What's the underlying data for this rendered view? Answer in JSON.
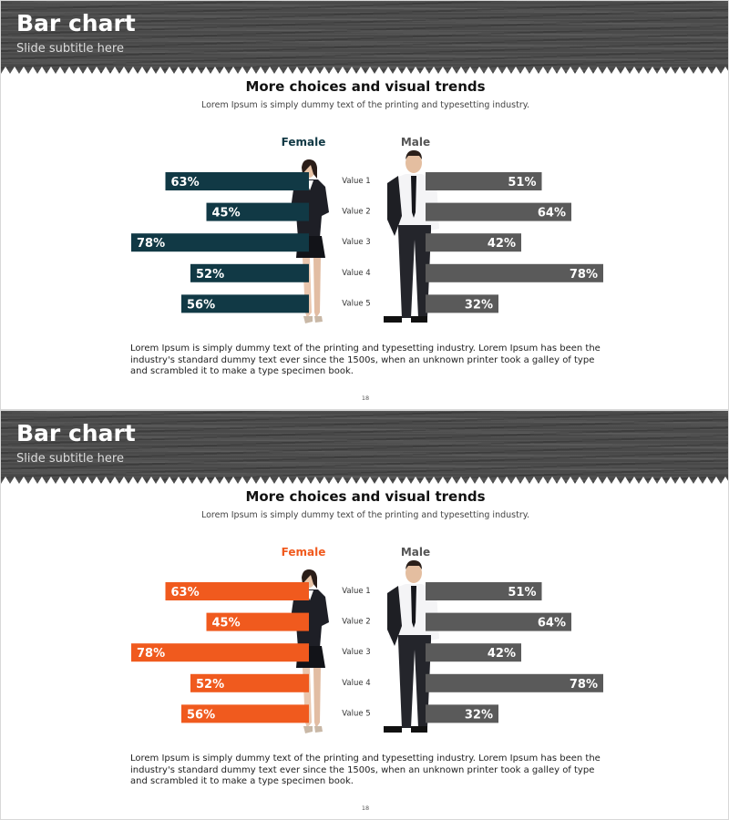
{
  "slides": [
    {
      "title": "Bar chart",
      "subtitle": "Slide subtitle here",
      "heading": "More choices and visual trends",
      "subheading": "Lorem Ipsum is simply dummy text of the printing and typesetting industry.",
      "body": "Lorem Ipsum is simply dummy text of the printing and typesetting industry. Lorem Ipsum has been the industry's standard dummy text ever since the 1500s, when an unknown printer took a galley of type and scrambled it to make a type specimen book.",
      "page_number": "18",
      "female_color": "#113945",
      "male_color": "#5a5a5a"
    },
    {
      "title": "Bar chart",
      "subtitle": "Slide subtitle here",
      "heading": "More choices and visual trends",
      "subheading": "Lorem Ipsum is simply dummy text of the printing and typesetting industry.",
      "body": "Lorem Ipsum is simply dummy text of the printing and typesetting industry. Lorem Ipsum has been the industry's standard dummy text ever since the 1500s, when an unknown printer took a galley of type and scrambled it to make a type specimen book.",
      "page_number": "18",
      "female_color": "#f05a1e",
      "male_color": "#5a5a5a"
    }
  ],
  "chart_data": [
    {
      "type": "bar",
      "orientation": "horizontal-diverging",
      "categories": [
        "Value 1",
        "Value 2",
        "Value 3",
        "Value 4",
        "Value 5"
      ],
      "series": [
        {
          "name": "Female",
          "values": [
            63,
            45,
            78,
            52,
            56
          ],
          "color": "#113945"
        },
        {
          "name": "Male",
          "values": [
            51,
            64,
            42,
            78,
            32
          ],
          "color": "#5a5a5a"
        }
      ],
      "value_format": "percent",
      "legend": "top",
      "grid": false
    },
    {
      "type": "bar",
      "orientation": "horizontal-diverging",
      "categories": [
        "Value 1",
        "Value 2",
        "Value 3",
        "Value 4",
        "Value 5"
      ],
      "series": [
        {
          "name": "Female",
          "values": [
            63,
            45,
            78,
            52,
            56
          ],
          "color": "#f05a1e"
        },
        {
          "name": "Male",
          "values": [
            51,
            64,
            42,
            78,
            32
          ],
          "color": "#5a5a5a"
        }
      ],
      "value_format": "percent",
      "legend": "top",
      "grid": false
    }
  ]
}
